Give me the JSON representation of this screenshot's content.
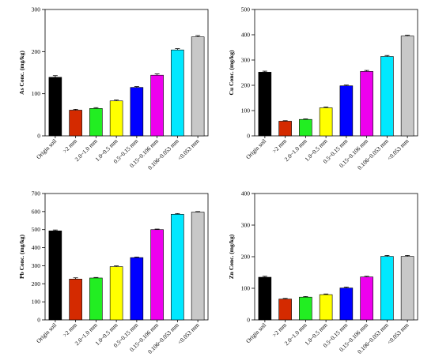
{
  "chart_data": [
    {
      "type": "bar",
      "ylabel": "As Conc. (mg/kg)",
      "ylim": [
        0,
        300
      ],
      "yticks": [
        0,
        100,
        200,
        300
      ],
      "categories": [
        "Origin soil",
        ">2 mm",
        "2.0~1.0 mm",
        "1.0~0.5 mm",
        "0.5~0.15 mm",
        "0.15~0.106 mm",
        "0.106~0.053 mm",
        "<0.053 mm"
      ],
      "values": [
        139,
        61,
        65,
        83,
        115,
        144,
        204,
        235
      ],
      "errors": [
        4,
        2,
        2,
        2,
        2,
        3,
        3,
        3
      ],
      "colors": [
        "#000000",
        "#d42a00",
        "#22ee22",
        "#ffff00",
        "#0000ff",
        "#ee00ee",
        "#00e8ff",
        "#c8c8c8"
      ]
    },
    {
      "type": "bar",
      "ylabel": "Cu Conc. (mg/kg)",
      "ylim": [
        0,
        500
      ],
      "yticks": [
        0,
        100,
        200,
        300,
        400,
        500
      ],
      "categories": [
        "Origin soil",
        ">2 mm",
        "2.0~1.0 mm",
        "1.0~0.5 mm",
        "0.5~0.15 mm",
        "0.15~0.106 mm",
        "0.106~0.053 mm",
        "<0.053 mm"
      ],
      "values": [
        252,
        58,
        65,
        111,
        198,
        255,
        314,
        395
      ],
      "errors": [
        4,
        2,
        2,
        3,
        3,
        4,
        4,
        3
      ],
      "colors": [
        "#000000",
        "#d42a00",
        "#22ee22",
        "#ffff00",
        "#0000ff",
        "#ee00ee",
        "#00e8ff",
        "#c8c8c8"
      ]
    },
    {
      "type": "bar",
      "ylabel": "Pb Conc. (mg/kg)",
      "ylim": [
        0,
        700
      ],
      "yticks": [
        0,
        100,
        200,
        300,
        400,
        500,
        600,
        700
      ],
      "categories": [
        "Origin soil",
        ">2 mm",
        "2.0~1.0 mm",
        "1.0~0.5 mm",
        "0.5~0.15 mm",
        "0.15~0.106 mm",
        "0.106~0.053 mm",
        "<0.053 mm"
      ],
      "values": [
        493,
        226,
        232,
        295,
        345,
        500,
        585,
        597
      ],
      "errors": [
        5,
        7,
        3,
        4,
        3,
        3,
        4,
        3
      ],
      "colors": [
        "#000000",
        "#d42a00",
        "#22ee22",
        "#ffff00",
        "#0000ff",
        "#ee00ee",
        "#00e8ff",
        "#c8c8c8"
      ]
    },
    {
      "type": "bar",
      "ylabel": "Zn Conc. (mg/kg)",
      "ylim": [
        0,
        400
      ],
      "yticks": [
        0,
        100,
        200,
        300,
        400
      ],
      "categories": [
        "Origin soil",
        ">2 mm",
        "2.0~1.0 mm",
        "1.0~0.5 mm",
        "0.5~0.15 mm",
        "0.15~0.106 mm",
        "0.106~0.053 mm",
        "<0.053 mm"
      ],
      "values": [
        135,
        66,
        72,
        80,
        101,
        136,
        201,
        201
      ],
      "errors": [
        3,
        2,
        2,
        2,
        3,
        2,
        3,
        3
      ],
      "colors": [
        "#000000",
        "#d42a00",
        "#22ee22",
        "#ffff00",
        "#0000ff",
        "#ee00ee",
        "#00e8ff",
        "#c8c8c8"
      ]
    }
  ]
}
